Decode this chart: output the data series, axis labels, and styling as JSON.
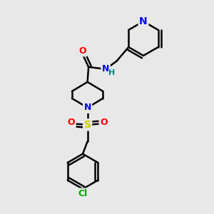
{
  "bg_color": "#e8e8e8",
  "atom_colors": {
    "C": "#000000",
    "N": "#0000ff",
    "O": "#ff0000",
    "S": "#cccc00",
    "Cl": "#00aa00",
    "H": "#008080"
  },
  "bond_color": "#000000",
  "bond_width": 1.8,
  "figsize": [
    3.0,
    3.0
  ],
  "dpi": 100,
  "xlim": [
    0,
    10
  ],
  "ylim": [
    0,
    10
  ]
}
